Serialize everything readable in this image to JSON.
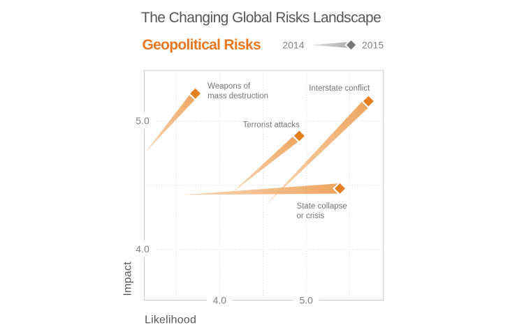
{
  "title": "The Changing Global Risks Landscape",
  "subtitle": "Geopolitical Risks",
  "legend": {
    "from_label": "2014",
    "to_label": "2015"
  },
  "colors": {
    "title_gray": "#56575A",
    "subtitle_orange": "#E87722",
    "year_gray": "#808285",
    "axis_title_gray": "#58595B",
    "tick_gray": "#7F8184",
    "risk_label_gray": "#75767A",
    "border_gray": "#CBCCCD",
    "grid_gray": "#DBDCDD",
    "arrow_tail_orange": "#F7D6B4",
    "arrow_head_orange": "#EC9B4E",
    "diamond_orange": "#E4801F",
    "legend_arrow_tail": "#DCDDDE",
    "legend_arrow_head": "#9FA1A3",
    "legend_diamond": "#77787B",
    "background": "#FFFFFF"
  },
  "chart_data": {
    "type": "scatter",
    "title": "The Changing Global Risks Landscape",
    "subtitle": "Geopolitical Risks",
    "xlabel": "Likelihood",
    "ylabel": "Impact",
    "xlim": [
      3.13,
      5.89
    ],
    "ylim": [
      3.6,
      5.39
    ],
    "x_ticks": [
      4.0,
      5.0
    ],
    "y_ticks": [
      4.0,
      5.0
    ],
    "x_gridlines": [
      3.5,
      4.0,
      4.5,
      5.0,
      5.5
    ],
    "y_gridlines": [
      4.0,
      4.5,
      5.0
    ],
    "grid": "dotted",
    "legend_position": "top-right",
    "series_kind": "trajectory-arrows (2014 tail to 2015 diamond head)",
    "series": [
      {
        "name": "Weapons of mass destruction",
        "from": {
          "year": "2014",
          "likelihood": 3.14,
          "impact": 4.75
        },
        "to": {
          "year": "2015",
          "likelihood": 3.72,
          "impact": 5.21
        },
        "label_lines": [
          "Weapons of",
          "mass destruction"
        ],
        "label_anchor": "start",
        "label_dx": 17.5,
        "label_dy": -7,
        "head_half_width": 5.5
      },
      {
        "name": "Terrorist attacks",
        "from": {
          "year": "2014",
          "likelihood": 4.13,
          "impact": 4.43
        },
        "to": {
          "year": "2015",
          "likelihood": 4.92,
          "impact": 4.88
        },
        "label_lines": [
          "Terrorist attacks"
        ],
        "label_anchor": "end",
        "label_dx": 0.5,
        "label_dy": -12.5,
        "head_half_width": 5.5
      },
      {
        "name": "Interstate conflict",
        "from": {
          "year": "2014",
          "likelihood": 4.53,
          "impact": 4.34
        },
        "to": {
          "year": "2015",
          "likelihood": 5.72,
          "impact": 5.15
        },
        "label_lines": [
          "Interstate conflict"
        ],
        "label_anchor": "end",
        "label_dx": 1.8,
        "label_dy": -15.2,
        "head_half_width": 6.5
      },
      {
        "name": "State collapse or crisis",
        "from": {
          "year": "2014",
          "likelihood": 3.55,
          "impact": 4.42
        },
        "to": {
          "year": "2015",
          "likelihood": 5.39,
          "impact": 4.47
        },
        "label_lines": [
          "State collapse",
          "or crisis"
        ],
        "label_anchor": "start",
        "label_dx": -62,
        "label_dy": 28.6,
        "head_half_width": 7.3
      }
    ]
  }
}
